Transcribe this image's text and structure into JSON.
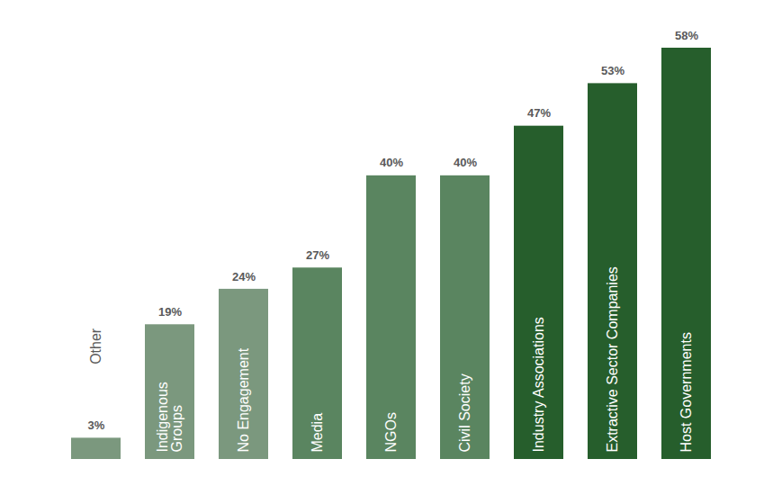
{
  "chart_data": {
    "type": "bar",
    "categories": [
      "Other",
      "Indigenous Groups",
      "No Engagement",
      "Media",
      "NGOs",
      "Civil Society",
      "Industry Associations",
      "Extractive Sector Companies",
      "Host Governments"
    ],
    "values": [
      3,
      19,
      24,
      27,
      40,
      40,
      47,
      53,
      58
    ],
    "value_labels": [
      "3%",
      "19%",
      "24%",
      "27%",
      "40%",
      "40%",
      "47%",
      "53%",
      "58%"
    ],
    "colors": [
      "#7b987e",
      "#7b987e",
      "#7b987e",
      "#5a8560",
      "#5a8560",
      "#5a8560",
      "#265e2c",
      "#265e2c",
      "#265e2c"
    ],
    "ylim": [
      0,
      58
    ],
    "data_labels": true,
    "tick_labels": false
  }
}
